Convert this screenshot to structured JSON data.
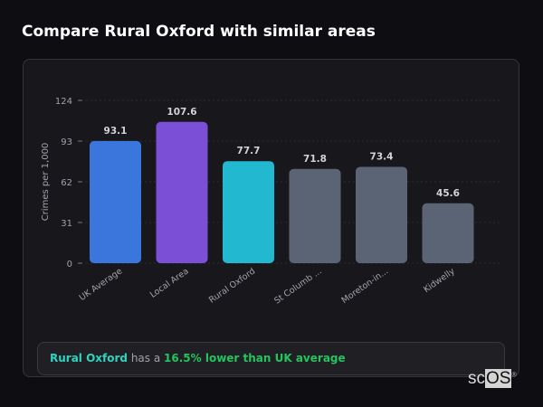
{
  "title": "Compare Rural Oxford with similar areas",
  "chart_data": {
    "type": "bar",
    "title": "",
    "xlabel": "",
    "ylabel": "Crimes per 1,000",
    "ylim": [
      0,
      124
    ],
    "yticks": [
      0,
      31,
      62,
      93,
      124
    ],
    "grid": true,
    "categories": [
      "UK Average",
      "Local Area",
      "Rural Oxford",
      "St Columb ...",
      "Moreton-in...",
      "Kidwelly"
    ],
    "values": [
      93.1,
      107.6,
      77.7,
      71.8,
      73.4,
      45.6
    ],
    "data_labels": [
      "93.1",
      "107.6",
      "77.7",
      "71.8",
      "73.4",
      "45.6"
    ],
    "colors": [
      "#3b76dc",
      "#7b4fd6",
      "#22b8cf",
      "#5a6475",
      "#5a6475",
      "#5a6475"
    ]
  },
  "summary": {
    "area": "Rural Oxford",
    "middle": " has a ",
    "comparison": "16.5% lower than UK average"
  },
  "watermark": {
    "prefix": "sc",
    "suffix": "OS",
    "mark": "®"
  }
}
